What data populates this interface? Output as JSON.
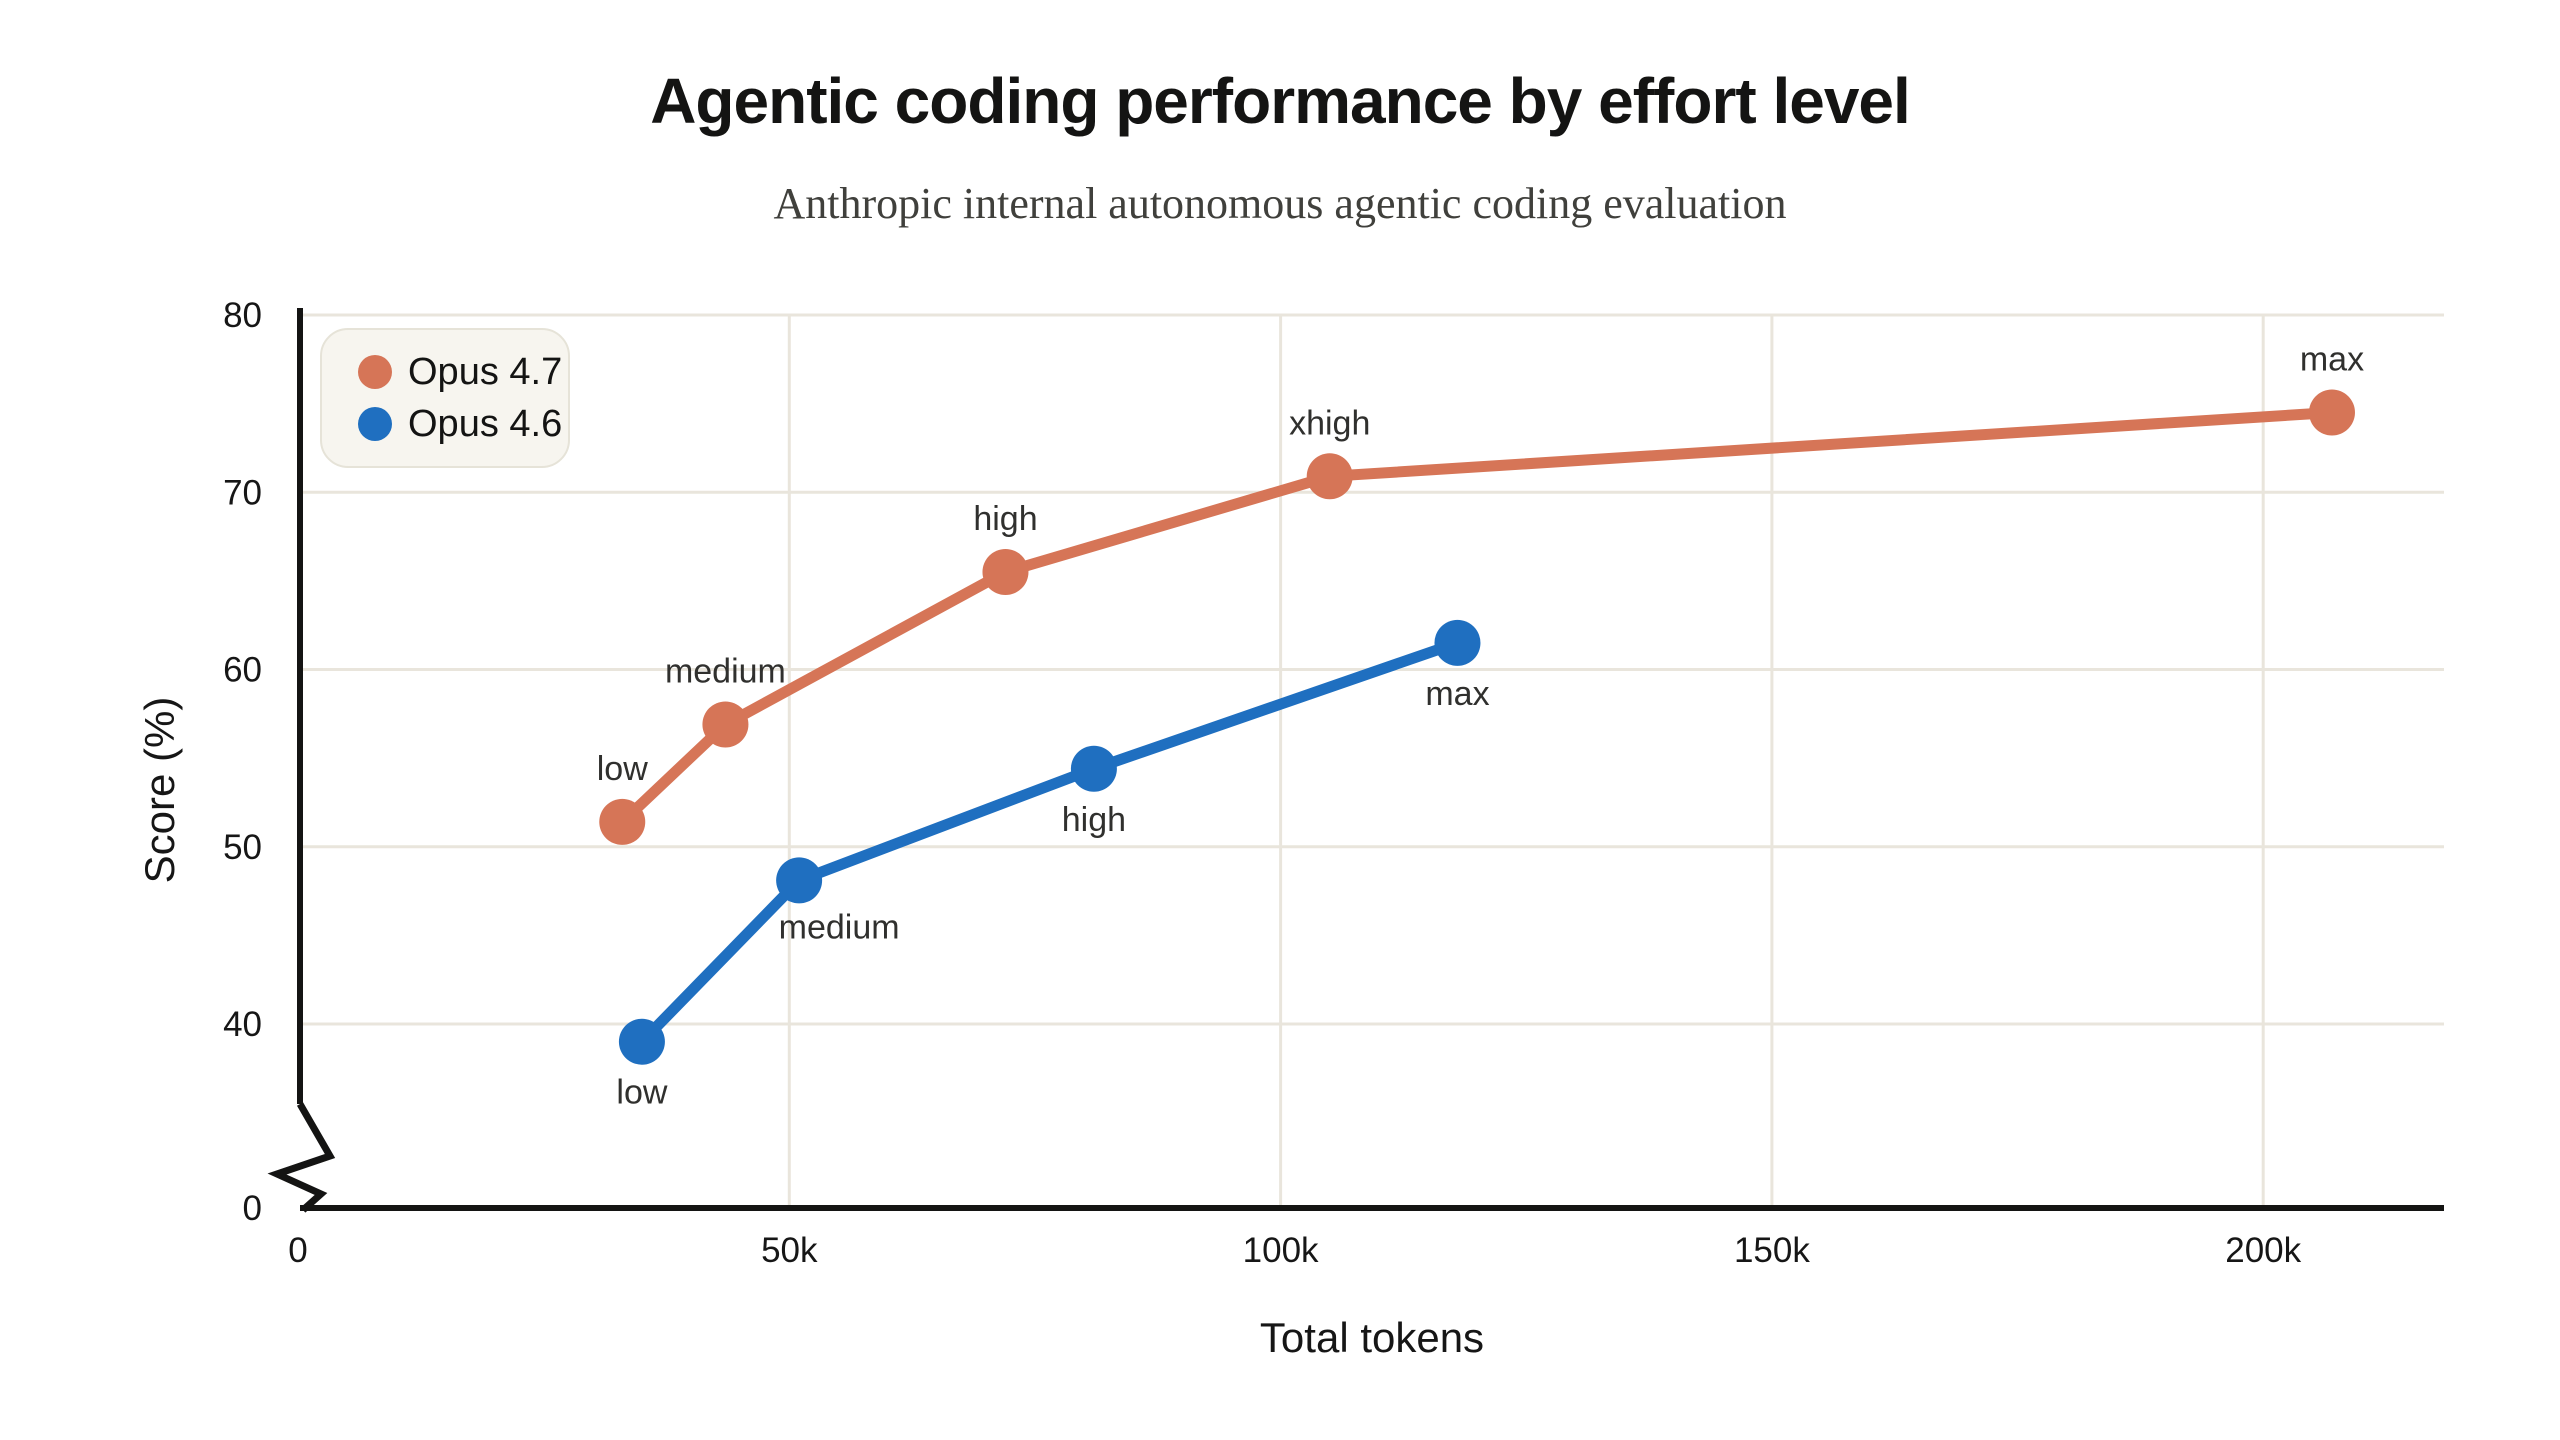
{
  "page": {
    "background": "#ffffff"
  },
  "chart_data": {
    "type": "line",
    "title": "Agentic coding performance by effort level",
    "subtitle": "Anthropic internal autonomous agentic coding evaluation",
    "xlabel": "Total tokens",
    "ylabel": "Score (%)",
    "grid": true,
    "legend_position": "top-left",
    "y_axis_break_between": [
      0,
      40
    ],
    "xlim_tokens": [
      0,
      218000
    ],
    "ylim_visible": [
      40,
      80
    ],
    "x_ticks": [
      {
        "value": 0,
        "label": "0"
      },
      {
        "value": 50000,
        "label": "50k"
      },
      {
        "value": 100000,
        "label": "100k"
      },
      {
        "value": 150000,
        "label": "150k"
      },
      {
        "value": 200000,
        "label": "200k"
      }
    ],
    "y_ticks": [
      {
        "value": 0,
        "label": "0"
      },
      {
        "value": 40,
        "label": "40"
      },
      {
        "value": 50,
        "label": "50"
      },
      {
        "value": 60,
        "label": "60"
      },
      {
        "value": 70,
        "label": "70"
      },
      {
        "value": 80,
        "label": "80"
      }
    ],
    "colors": {
      "opus_4_7": "#D67557",
      "opus_4_6": "#1F6FC0",
      "grid": "#e9e5dc",
      "axis": "#141413",
      "point_label": "#30302e",
      "legend_background": "#f7f5ef",
      "legend_border": "#e6e3d8"
    },
    "series": [
      {
        "name": "Opus 4.7",
        "color": "#D67557",
        "points": [
          {
            "label": "low",
            "x": 33000,
            "y": 51.4,
            "label_pos": "above"
          },
          {
            "label": "medium",
            "x": 43500,
            "y": 56.9,
            "label_pos": "above"
          },
          {
            "label": "high",
            "x": 72000,
            "y": 65.5,
            "label_pos": "above"
          },
          {
            "label": "xhigh",
            "x": 105000,
            "y": 70.9,
            "label_pos": "above"
          },
          {
            "label": "max",
            "x": 207000,
            "y": 74.5,
            "label_pos": "above"
          }
        ]
      },
      {
        "name": "Opus 4.6",
        "color": "#1F6FC0",
        "points": [
          {
            "label": "low",
            "x": 35000,
            "y": 39.0,
            "label_pos": "below"
          },
          {
            "label": "medium",
            "x": 51000,
            "y": 48.1,
            "label_pos": "below-right"
          },
          {
            "label": "high",
            "x": 81000,
            "y": 54.4,
            "label_pos": "below"
          },
          {
            "label": "max",
            "x": 118000,
            "y": 61.5,
            "label_pos": "below"
          }
        ]
      }
    ]
  }
}
